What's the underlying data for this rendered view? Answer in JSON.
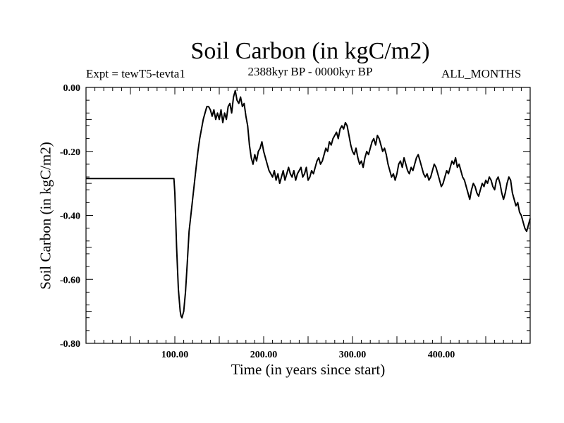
{
  "header": {
    "title": "Soil Carbon (in kgC/m2)",
    "experiment": "Expt = tewT5-tevta1",
    "period": "2388kyr BP - 0000kyr BP",
    "months": "ALL_MONTHS"
  },
  "chart_data": {
    "type": "line",
    "title": "Soil Carbon (in kgC/m2)",
    "xlabel": "Time (in years since start)",
    "ylabel": "Soil Carbon (in kgC/m2)",
    "xlim": [
      0,
      500
    ],
    "ylim": [
      -0.8,
      0.0
    ],
    "x_ticks": [
      100,
      200,
      300,
      400
    ],
    "x_tick_labels": [
      "100.00",
      "200.00",
      "300.00",
      "400.00"
    ],
    "y_ticks": [
      0.0,
      -0.2,
      -0.4,
      -0.6,
      -0.8
    ],
    "y_tick_labels": [
      "0.00",
      "-0.20",
      "-0.40",
      "-0.60",
      "-0.80"
    ],
    "series": [
      {
        "name": "Soil Carbon",
        "color": "#000000",
        "points": [
          [
            0,
            -0.285
          ],
          [
            50,
            -0.285
          ],
          [
            99,
            -0.285
          ],
          [
            100,
            -0.33
          ],
          [
            102,
            -0.5
          ],
          [
            104,
            -0.63
          ],
          [
            106,
            -0.7
          ],
          [
            107,
            -0.715
          ],
          [
            108,
            -0.72
          ],
          [
            110,
            -0.7
          ],
          [
            112,
            -0.64
          ],
          [
            114,
            -0.55
          ],
          [
            116,
            -0.45
          ],
          [
            118,
            -0.4
          ],
          [
            120,
            -0.35
          ],
          [
            122,
            -0.3
          ],
          [
            124,
            -0.25
          ],
          [
            126,
            -0.2
          ],
          [
            128,
            -0.16
          ],
          [
            130,
            -0.13
          ],
          [
            132,
            -0.1
          ],
          [
            134,
            -0.08
          ],
          [
            136,
            -0.06
          ],
          [
            138,
            -0.06
          ],
          [
            140,
            -0.07
          ],
          [
            142,
            -0.09
          ],
          [
            144,
            -0.07
          ],
          [
            146,
            -0.1
          ],
          [
            148,
            -0.08
          ],
          [
            150,
            -0.1
          ],
          [
            152,
            -0.07
          ],
          [
            154,
            -0.11
          ],
          [
            156,
            -0.08
          ],
          [
            158,
            -0.1
          ],
          [
            160,
            -0.06
          ],
          [
            162,
            -0.05
          ],
          [
            164,
            -0.08
          ],
          [
            166,
            -0.03
          ],
          [
            168,
            -0.01
          ],
          [
            170,
            -0.04
          ],
          [
            172,
            -0.05
          ],
          [
            174,
            -0.03
          ],
          [
            176,
            -0.06
          ],
          [
            178,
            -0.05
          ],
          [
            180,
            -0.09
          ],
          [
            182,
            -0.12
          ],
          [
            184,
            -0.18
          ],
          [
            186,
            -0.22
          ],
          [
            188,
            -0.24
          ],
          [
            190,
            -0.21
          ],
          [
            192,
            -0.23
          ],
          [
            194,
            -0.2
          ],
          [
            196,
            -0.19
          ],
          [
            198,
            -0.17
          ],
          [
            200,
            -0.2
          ],
          [
            202,
            -0.22
          ],
          [
            204,
            -0.24
          ],
          [
            206,
            -0.26
          ],
          [
            208,
            -0.27
          ],
          [
            210,
            -0.28
          ],
          [
            212,
            -0.26
          ],
          [
            214,
            -0.29
          ],
          [
            216,
            -0.27
          ],
          [
            218,
            -0.3
          ],
          [
            220,
            -0.28
          ],
          [
            222,
            -0.26
          ],
          [
            224,
            -0.29
          ],
          [
            226,
            -0.27
          ],
          [
            228,
            -0.25
          ],
          [
            230,
            -0.27
          ],
          [
            232,
            -0.28
          ],
          [
            234,
            -0.26
          ],
          [
            236,
            -0.29
          ],
          [
            238,
            -0.27
          ],
          [
            240,
            -0.26
          ],
          [
            242,
            -0.25
          ],
          [
            244,
            -0.28
          ],
          [
            246,
            -0.27
          ],
          [
            248,
            -0.25
          ],
          [
            250,
            -0.29
          ],
          [
            252,
            -0.28
          ],
          [
            254,
            -0.26
          ],
          [
            256,
            -0.27
          ],
          [
            258,
            -0.25
          ],
          [
            260,
            -0.23
          ],
          [
            262,
            -0.22
          ],
          [
            264,
            -0.24
          ],
          [
            266,
            -0.23
          ],
          [
            268,
            -0.21
          ],
          [
            270,
            -0.19
          ],
          [
            272,
            -0.2
          ],
          [
            274,
            -0.17
          ],
          [
            276,
            -0.18
          ],
          [
            278,
            -0.16
          ],
          [
            280,
            -0.15
          ],
          [
            282,
            -0.14
          ],
          [
            284,
            -0.16
          ],
          [
            286,
            -0.13
          ],
          [
            288,
            -0.12
          ],
          [
            290,
            -0.13
          ],
          [
            292,
            -0.11
          ],
          [
            294,
            -0.12
          ],
          [
            296,
            -0.15
          ],
          [
            298,
            -0.18
          ],
          [
            300,
            -0.2
          ],
          [
            302,
            -0.21
          ],
          [
            304,
            -0.19
          ],
          [
            306,
            -0.22
          ],
          [
            308,
            -0.24
          ],
          [
            310,
            -0.23
          ],
          [
            312,
            -0.25
          ],
          [
            314,
            -0.22
          ],
          [
            316,
            -0.2
          ],
          [
            318,
            -0.21
          ],
          [
            320,
            -0.19
          ],
          [
            322,
            -0.17
          ],
          [
            324,
            -0.16
          ],
          [
            326,
            -0.18
          ],
          [
            328,
            -0.15
          ],
          [
            330,
            -0.16
          ],
          [
            332,
            -0.18
          ],
          [
            334,
            -0.2
          ],
          [
            336,
            -0.19
          ],
          [
            338,
            -0.21
          ],
          [
            340,
            -0.24
          ],
          [
            342,
            -0.26
          ],
          [
            344,
            -0.28
          ],
          [
            346,
            -0.27
          ],
          [
            348,
            -0.29
          ],
          [
            350,
            -0.27
          ],
          [
            352,
            -0.24
          ],
          [
            354,
            -0.23
          ],
          [
            356,
            -0.25
          ],
          [
            358,
            -0.22
          ],
          [
            360,
            -0.24
          ],
          [
            362,
            -0.26
          ],
          [
            364,
            -0.27
          ],
          [
            366,
            -0.25
          ],
          [
            368,
            -0.26
          ],
          [
            370,
            -0.24
          ],
          [
            372,
            -0.22
          ],
          [
            374,
            -0.21
          ],
          [
            376,
            -0.23
          ],
          [
            378,
            -0.25
          ],
          [
            380,
            -0.27
          ],
          [
            382,
            -0.28
          ],
          [
            384,
            -0.27
          ],
          [
            386,
            -0.29
          ],
          [
            388,
            -0.28
          ],
          [
            390,
            -0.26
          ],
          [
            392,
            -0.24
          ],
          [
            394,
            -0.25
          ],
          [
            396,
            -0.27
          ],
          [
            398,
            -0.29
          ],
          [
            400,
            -0.31
          ],
          [
            402,
            -0.3
          ],
          [
            404,
            -0.28
          ],
          [
            406,
            -0.26
          ],
          [
            408,
            -0.27
          ],
          [
            410,
            -0.25
          ],
          [
            412,
            -0.23
          ],
          [
            414,
            -0.24
          ],
          [
            416,
            -0.22
          ],
          [
            418,
            -0.25
          ],
          [
            420,
            -0.24
          ],
          [
            422,
            -0.26
          ],
          [
            424,
            -0.28
          ],
          [
            426,
            -0.29
          ],
          [
            428,
            -0.31
          ],
          [
            430,
            -0.33
          ],
          [
            432,
            -0.35
          ],
          [
            434,
            -0.32
          ],
          [
            436,
            -0.3
          ],
          [
            438,
            -0.31
          ],
          [
            440,
            -0.33
          ],
          [
            442,
            -0.34
          ],
          [
            444,
            -0.32
          ],
          [
            446,
            -0.3
          ],
          [
            448,
            -0.31
          ],
          [
            450,
            -0.29
          ],
          [
            452,
            -0.3
          ],
          [
            454,
            -0.28
          ],
          [
            456,
            -0.29
          ],
          [
            458,
            -0.31
          ],
          [
            460,
            -0.32
          ],
          [
            462,
            -0.29
          ],
          [
            464,
            -0.28
          ],
          [
            466,
            -0.3
          ],
          [
            468,
            -0.33
          ],
          [
            470,
            -0.35
          ],
          [
            472,
            -0.33
          ],
          [
            474,
            -0.3
          ],
          [
            476,
            -0.28
          ],
          [
            478,
            -0.29
          ],
          [
            480,
            -0.33
          ],
          [
            482,
            -0.35
          ],
          [
            484,
            -0.37
          ],
          [
            486,
            -0.36
          ],
          [
            488,
            -0.39
          ],
          [
            490,
            -0.4
          ],
          [
            492,
            -0.42
          ],
          [
            494,
            -0.44
          ],
          [
            496,
            -0.45
          ],
          [
            498,
            -0.43
          ],
          [
            500,
            -0.41
          ]
        ]
      }
    ]
  }
}
